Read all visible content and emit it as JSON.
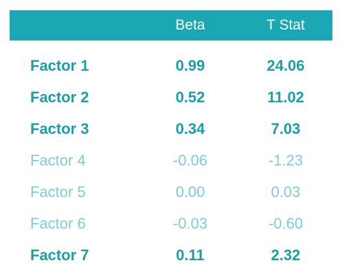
{
  "header": {
    "beta_label": "Beta",
    "tstat_label": "T Stat"
  },
  "rows": [
    {
      "factor": "Factor 1",
      "beta": "0.99",
      "tstat": "24.06",
      "significant": true
    },
    {
      "factor": "Factor 2",
      "beta": "0.52",
      "tstat": "11.02",
      "significant": true
    },
    {
      "factor": "Factor 3",
      "beta": "0.34",
      "tstat": "7.03",
      "significant": true
    },
    {
      "factor": "Factor 4",
      "beta": "-0.06",
      "tstat": "-1.23",
      "significant": false
    },
    {
      "factor": "Factor 5",
      "beta": "0.00",
      "tstat": "0.03",
      "significant": false
    },
    {
      "factor": "Factor 6",
      "beta": "-0.03",
      "tstat": "-0.60",
      "significant": false
    },
    {
      "factor": "Factor 7",
      "beta": "0.11",
      "tstat": "2.32",
      "significant": true
    }
  ],
  "colors": {
    "header_bg": "#1ba8b4",
    "significant_text": "#1a9eab",
    "insignificant_text": "#7ccdd4"
  }
}
